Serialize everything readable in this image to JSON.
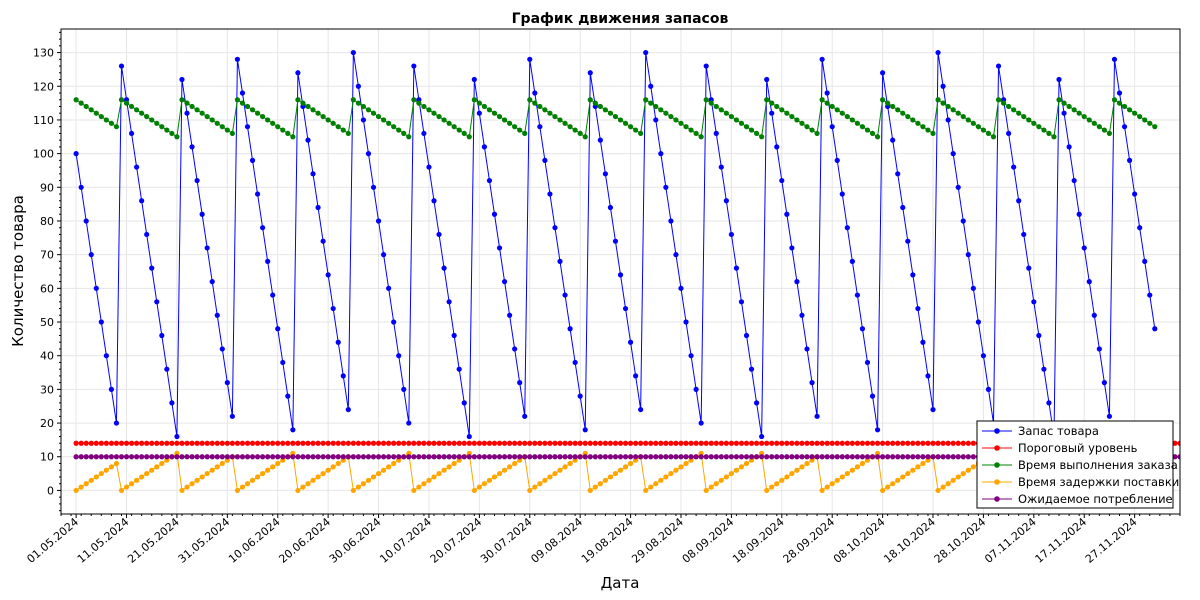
{
  "chart_data": {
    "type": "line",
    "title": "График движения запасов",
    "xlabel": "Дата",
    "ylabel": "Количество товара",
    "xlim": [
      "2024-04-28",
      "2024-12-06"
    ],
    "ylim": [
      -7,
      137
    ],
    "x_tick_labels": [
      "01.05.2024",
      "11.05.2024",
      "21.05.2024",
      "31.05.2024",
      "10.06.2024",
      "20.06.2024",
      "30.06.2024",
      "10.07.2024",
      "20.07.2024",
      "30.07.2024",
      "09.08.2024",
      "19.08.2024",
      "29.08.2024",
      "08.09.2024",
      "18.09.2024",
      "28.09.2024",
      "08.10.2024",
      "18.10.2024",
      "28.10.2024",
      "07.11.2024",
      "17.11.2024",
      "27.11.2024"
    ],
    "y_ticks": [
      0,
      10,
      20,
      30,
      40,
      50,
      60,
      70,
      80,
      90,
      100,
      110,
      120,
      130
    ],
    "grid": true,
    "legend_position": "bottom-right",
    "series": [
      {
        "name": "Запас товара",
        "color": "#0000ff",
        "x_start": "2024-05-01",
        "x_end": "2024-12-12",
        "values": [
          100,
          90,
          80,
          70,
          60,
          50,
          40,
          30,
          20,
          126,
          116,
          106,
          96,
          86,
          76,
          66,
          56,
          46,
          36,
          26,
          16,
          122,
          112,
          102,
          92,
          82,
          72,
          62,
          52,
          42,
          32,
          22,
          128,
          118,
          108,
          98,
          88,
          78,
          68,
          58,
          48,
          38,
          28,
          18,
          124,
          114,
          104,
          94,
          84,
          74,
          64,
          54,
          44,
          34,
          24,
          130,
          120,
          110,
          100,
          90,
          80,
          70,
          60,
          50,
          40,
          30,
          20,
          126,
          116,
          106,
          96,
          86,
          76,
          66,
          56,
          46,
          36,
          26,
          16,
          122,
          112,
          102,
          92,
          82,
          72,
          62,
          52,
          42,
          32,
          22,
          128,
          118,
          108,
          98,
          88,
          78,
          68,
          58,
          48,
          38,
          28,
          18,
          124,
          114,
          104,
          94,
          84,
          74,
          64,
          54,
          44,
          34,
          24,
          130,
          120,
          110,
          100,
          90,
          80,
          70,
          60,
          50,
          40,
          30,
          20,
          126,
          116,
          106,
          96,
          86,
          76,
          66,
          56,
          46,
          36,
          26,
          16,
          122,
          112,
          102,
          92,
          82,
          72,
          62,
          52,
          42,
          32,
          22,
          128,
          118,
          108,
          98,
          88,
          78,
          68,
          58,
          48,
          38,
          28,
          18,
          124,
          114,
          104,
          94,
          84,
          74,
          64,
          54,
          44,
          34,
          24,
          130,
          120,
          110,
          100,
          90,
          80,
          70,
          60,
          50,
          40,
          30,
          20,
          126,
          116,
          106,
          96,
          86,
          76,
          66,
          56,
          46,
          36,
          26,
          16,
          122,
          112,
          102,
          92,
          82,
          72,
          62,
          52,
          42,
          32,
          22,
          128,
          118,
          108,
          98,
          88,
          78,
          68,
          58,
          48
        ]
      },
      {
        "name": "Пороговый уровень",
        "color": "#ff0000",
        "x_start": "2024-05-01",
        "x_end": "2024-12-12",
        "constant": 14
      },
      {
        "name": "Время выполнения заказа",
        "color": "#008000",
        "x_start": "2024-05-01",
        "x_end": "2024-12-12",
        "values": [
          116,
          115,
          114,
          113,
          112,
          111,
          110,
          109,
          108,
          116,
          115,
          114,
          113,
          112,
          111,
          110,
          109,
          108,
          107,
          106,
          105,
          116,
          115,
          114,
          113,
          112,
          111,
          110,
          109,
          108,
          107,
          106,
          116,
          115,
          114,
          113,
          112,
          111,
          110,
          109,
          108,
          107,
          106,
          105,
          116,
          115,
          114,
          113,
          112,
          111,
          110,
          109,
          108,
          107,
          106,
          116,
          115,
          114,
          113,
          112,
          111,
          110,
          109,
          108,
          107,
          106,
          105,
          116,
          115,
          114,
          113,
          112,
          111,
          110,
          109,
          108,
          107,
          106,
          105,
          116,
          115,
          114,
          113,
          112,
          111,
          110,
          109,
          108,
          107,
          106,
          116,
          115,
          114,
          113,
          112,
          111,
          110,
          109,
          108,
          107,
          106,
          105,
          116,
          115,
          114,
          113,
          112,
          111,
          110,
          109,
          108,
          107,
          106,
          116,
          115,
          114,
          113,
          112,
          111,
          110,
          109,
          108,
          107,
          106,
          105,
          116,
          115,
          114,
          113,
          112,
          111,
          110,
          109,
          108,
          107,
          106,
          105,
          116,
          115,
          114,
          113,
          112,
          111,
          110,
          109,
          108,
          107,
          106,
          116,
          115,
          114,
          113,
          112,
          111,
          110,
          109,
          108,
          107,
          106,
          105,
          116,
          115,
          114,
          113,
          112,
          111,
          110,
          109,
          108,
          107,
          106,
          116,
          115,
          114,
          113,
          112,
          111,
          110,
          109,
          108,
          107,
          106,
          105,
          116,
          115,
          114,
          113,
          112,
          111,
          110,
          109,
          108,
          107,
          106,
          105,
          116,
          115,
          114,
          113,
          112,
          111,
          110,
          109,
          108,
          107,
          106,
          116,
          115,
          114,
          113,
          112,
          111,
          110,
          109,
          108
        ]
      },
      {
        "name": "Время задержки поставки",
        "color": "#ffa500",
        "x_start": "2024-05-01",
        "x_end": "2024-12-12",
        "values": [
          0,
          1,
          2,
          3,
          4,
          5,
          6,
          7,
          8,
          0,
          1,
          2,
          3,
          4,
          5,
          6,
          7,
          8,
          9,
          10,
          11,
          0,
          1,
          2,
          3,
          4,
          5,
          6,
          7,
          8,
          9,
          10,
          0,
          1,
          2,
          3,
          4,
          5,
          6,
          7,
          8,
          9,
          10,
          11,
          0,
          1,
          2,
          3,
          4,
          5,
          6,
          7,
          8,
          9,
          10,
          0,
          1,
          2,
          3,
          4,
          5,
          6,
          7,
          8,
          9,
          10,
          11,
          0,
          1,
          2,
          3,
          4,
          5,
          6,
          7,
          8,
          9,
          10,
          11,
          0,
          1,
          2,
          3,
          4,
          5,
          6,
          7,
          8,
          9,
          10,
          0,
          1,
          2,
          3,
          4,
          5,
          6,
          7,
          8,
          9,
          10,
          11,
          0,
          1,
          2,
          3,
          4,
          5,
          6,
          7,
          8,
          9,
          10,
          0,
          1,
          2,
          3,
          4,
          5,
          6,
          7,
          8,
          9,
          10,
          11,
          0,
          1,
          2,
          3,
          4,
          5,
          6,
          7,
          8,
          9,
          10,
          11,
          0,
          1,
          2,
          3,
          4,
          5,
          6,
          7,
          8,
          9,
          10,
          0,
          1,
          2,
          3,
          4,
          5,
          6,
          7,
          8,
          9,
          10,
          11,
          0,
          1,
          2,
          3,
          4,
          5,
          6,
          7,
          8,
          9,
          10,
          0,
          1,
          2,
          3,
          4,
          5,
          6,
          7,
          8,
          9,
          10,
          11,
          0,
          1,
          2,
          3,
          4,
          5,
          6,
          7,
          8,
          9,
          10,
          11,
          0,
          1,
          2,
          3,
          4,
          5,
          6,
          7,
          8,
          9,
          10,
          0,
          1,
          2,
          3,
          4,
          5,
          6,
          7,
          8
        ]
      },
      {
        "name": "Ожидаемое потребление",
        "color": "#800080",
        "x_start": "2024-05-01",
        "x_end": "2024-12-12",
        "constant": 10
      }
    ]
  }
}
